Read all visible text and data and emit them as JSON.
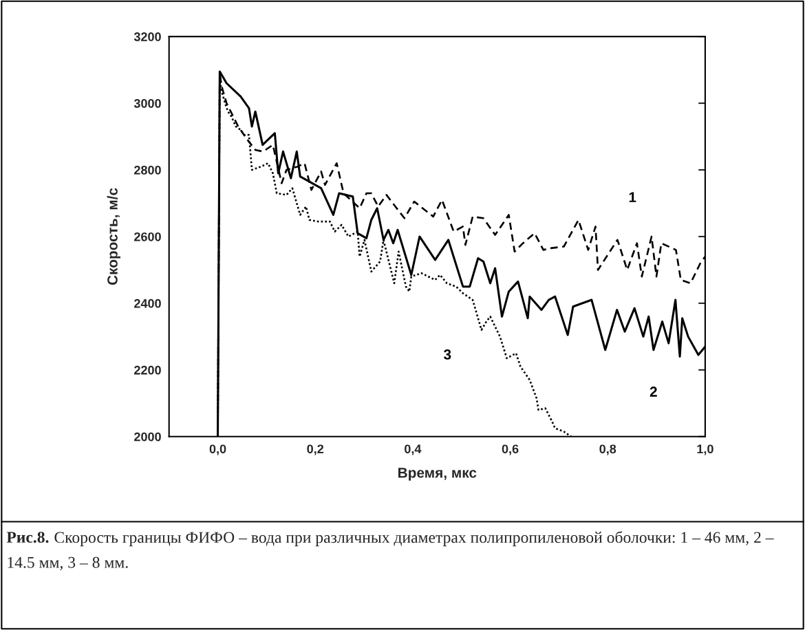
{
  "chart_data": {
    "type": "line",
    "xlabel": "Время, мкс",
    "ylabel": "Скорость, м/с",
    "xlim": [
      -0.1,
      1.0
    ],
    "xticks": [
      {
        "value": 0.0,
        "label": "0,0"
      },
      {
        "value": 0.2,
        "label": "0,2"
      },
      {
        "value": 0.4,
        "label": "0,4"
      },
      {
        "value": 0.6,
        "label": "0,6"
      },
      {
        "value": 0.8,
        "label": "0,8"
      },
      {
        "value": 1.0,
        "label": "1,0"
      }
    ],
    "ylim": [
      2000,
      3200
    ],
    "yticks": [
      2000,
      2200,
      2400,
      2600,
      2800,
      3000,
      3200
    ],
    "grid": false,
    "legend": false,
    "marker": "none",
    "series": [
      {
        "name": "1",
        "color": "#000000",
        "line_style": "dashed",
        "x": [
          0,
          0.004,
          0.008,
          0.018,
          0.042,
          0.061,
          0.077,
          0.093,
          0.113,
          0.131,
          0.141,
          0.164,
          0.178,
          0.192,
          0.212,
          0.22,
          0.244,
          0.258,
          0.291,
          0.305,
          0.315,
          0.329,
          0.346,
          0.367,
          0.383,
          0.403,
          0.442,
          0.46,
          0.484,
          0.503,
          0.508,
          0.523,
          0.545,
          0.569,
          0.597,
          0.609,
          0.626,
          0.65,
          0.668,
          0.682,
          0.71,
          0.74,
          0.76,
          0.775,
          0.78,
          0.82,
          0.84,
          0.86,
          0.87,
          0.89,
          0.9,
          0.91,
          0.94,
          0.95,
          0.97,
          0.99,
          1.0
        ],
        "values": [
          2000,
          3090,
          3050,
          3000,
          2930,
          2890,
          2860,
          2855,
          2875,
          2760,
          2800,
          2810,
          2820,
          2740,
          2795,
          2755,
          2820,
          2730,
          2685,
          2730,
          2730,
          2690,
          2725,
          2685,
          2655,
          2705,
          2660,
          2710,
          2615,
          2630,
          2575,
          2660,
          2655,
          2605,
          2665,
          2555,
          2580,
          2610,
          2560,
          2565,
          2570,
          2650,
          2560,
          2630,
          2500,
          2590,
          2500,
          2580,
          2480,
          2600,
          2480,
          2580,
          2560,
          2470,
          2460,
          2520,
          2540
        ]
      },
      {
        "name": "2",
        "color": "#000000",
        "line_style": "solid",
        "x": [
          0,
          0.004,
          0.018,
          0.047,
          0.064,
          0.07,
          0.077,
          0.092,
          0.117,
          0.124,
          0.134,
          0.15,
          0.162,
          0.169,
          0.212,
          0.237,
          0.249,
          0.277,
          0.287,
          0.305,
          0.315,
          0.327,
          0.34,
          0.35,
          0.36,
          0.369,
          0.397,
          0.414,
          0.446,
          0.473,
          0.503,
          0.517,
          0.534,
          0.545,
          0.559,
          0.569,
          0.583,
          0.597,
          0.616,
          0.636,
          0.64,
          0.664,
          0.679,
          0.692,
          0.718,
          0.729,
          0.767,
          0.795,
          0.819,
          0.835,
          0.855,
          0.873,
          0.884,
          0.894,
          0.912,
          0.925,
          0.939,
          0.948,
          0.953,
          0.965,
          0.986,
          1.0
        ],
        "values": [
          2000,
          3095,
          3060,
          3020,
          2985,
          2930,
          2975,
          2875,
          2910,
          2790,
          2855,
          2775,
          2855,
          2780,
          2745,
          2665,
          2730,
          2720,
          2610,
          2595,
          2650,
          2685,
          2590,
          2620,
          2580,
          2620,
          2485,
          2600,
          2530,
          2590,
          2450,
          2450,
          2535,
          2525,
          2460,
          2505,
          2360,
          2435,
          2465,
          2355,
          2420,
          2380,
          2410,
          2420,
          2305,
          2390,
          2410,
          2260,
          2380,
          2315,
          2385,
          2300,
          2360,
          2260,
          2345,
          2280,
          2410,
          2240,
          2355,
          2300,
          2245,
          2270
        ]
      },
      {
        "name": "3",
        "color": "#000000",
        "line_style": "dotted",
        "x": [
          0,
          0.004,
          0.007,
          0.016,
          0.021,
          0.028,
          0.037,
          0.047,
          0.054,
          0.064,
          0.07,
          0.089,
          0.103,
          0.113,
          0.121,
          0.141,
          0.153,
          0.169,
          0.181,
          0.188,
          0.206,
          0.23,
          0.24,
          0.254,
          0.268,
          0.287,
          0.291,
          0.301,
          0.315,
          0.333,
          0.34,
          0.362,
          0.371,
          0.386,
          0.393,
          0.397,
          0.418,
          0.446,
          0.456,
          0.47,
          0.489,
          0.503,
          0.523,
          0.541,
          0.551,
          0.559,
          0.579,
          0.593,
          0.612,
          0.621,
          0.64,
          0.654,
          0.658,
          0.672,
          0.686,
          0.692,
          0.71,
          0.72,
          0.725
        ],
        "values": [
          2000,
          3090,
          3040,
          2995,
          2975,
          2960,
          2930,
          2920,
          2905,
          2905,
          2800,
          2810,
          2820,
          2790,
          2730,
          2725,
          2745,
          2665,
          2690,
          2650,
          2645,
          2645,
          2615,
          2635,
          2600,
          2615,
          2540,
          2590,
          2495,
          2525,
          2590,
          2460,
          2555,
          2450,
          2435,
          2480,
          2490,
          2470,
          2485,
          2460,
          2450,
          2430,
          2410,
          2320,
          2345,
          2360,
          2300,
          2235,
          2250,
          2210,
          2170,
          2115,
          2080,
          2085,
          2045,
          2025,
          2015,
          2005,
          2000
        ]
      }
    ],
    "annotations": [
      "Рис.8.",
      "Скорость границы ФИФО – вода при различных диаметрах полипропиленовой оболочки: 1 – 46 мм, 2 – 14.5 мм, 3 – 8 мм."
    ]
  }
}
